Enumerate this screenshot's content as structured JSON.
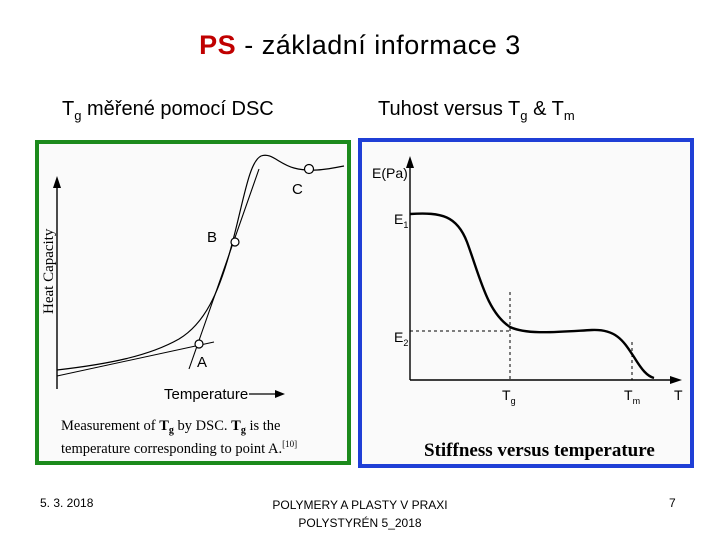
{
  "slide": {
    "title_ps": "PS",
    "title_rest": " - základní informace 3",
    "left_heading_main": "T",
    "left_heading_sub": "g",
    "left_heading_rest": " měřené pomocí DSC",
    "right_heading_main": "Tuhost versus T",
    "right_heading_sub1": "g",
    "right_heading_mid": " & T",
    "right_heading_sub2": "m"
  },
  "left_figure": {
    "y_axis_label": "Heat Capacity",
    "x_axis_label": "Temperature",
    "points": [
      "A",
      "B",
      "C"
    ],
    "caption_line1_a": "Measurement of ",
    "caption_T1": "T",
    "caption_g1": "g",
    "caption_line1_b": " by DSC. ",
    "caption_T2": "T",
    "caption_g2": "g",
    "caption_line1_c": " is the",
    "caption_line2": "temperature corresponding to point A.",
    "caption_ref": "[10]"
  },
  "right_figure": {
    "y_axis_label": "E(Pa)",
    "e1_main": "E",
    "e1_sub": "1",
    "e2_main": "E",
    "e2_sub": "2",
    "tg_main": "T",
    "tg_sub": "g",
    "tm_main": "T",
    "tm_sub": "m",
    "x_axis_label": "T",
    "caption": "Stiffness versus temperature"
  },
  "footer": {
    "date": "5. 3. 2018",
    "center_line1": "POLYMERY A PLASTY V PRAXI",
    "center_line2": "POLYSTYRÉN 5_2018",
    "page_number": "7"
  },
  "colors": {
    "title_accent": "#c00000",
    "left_border": "#1c8a1c",
    "right_border": "#1f3fd6"
  }
}
